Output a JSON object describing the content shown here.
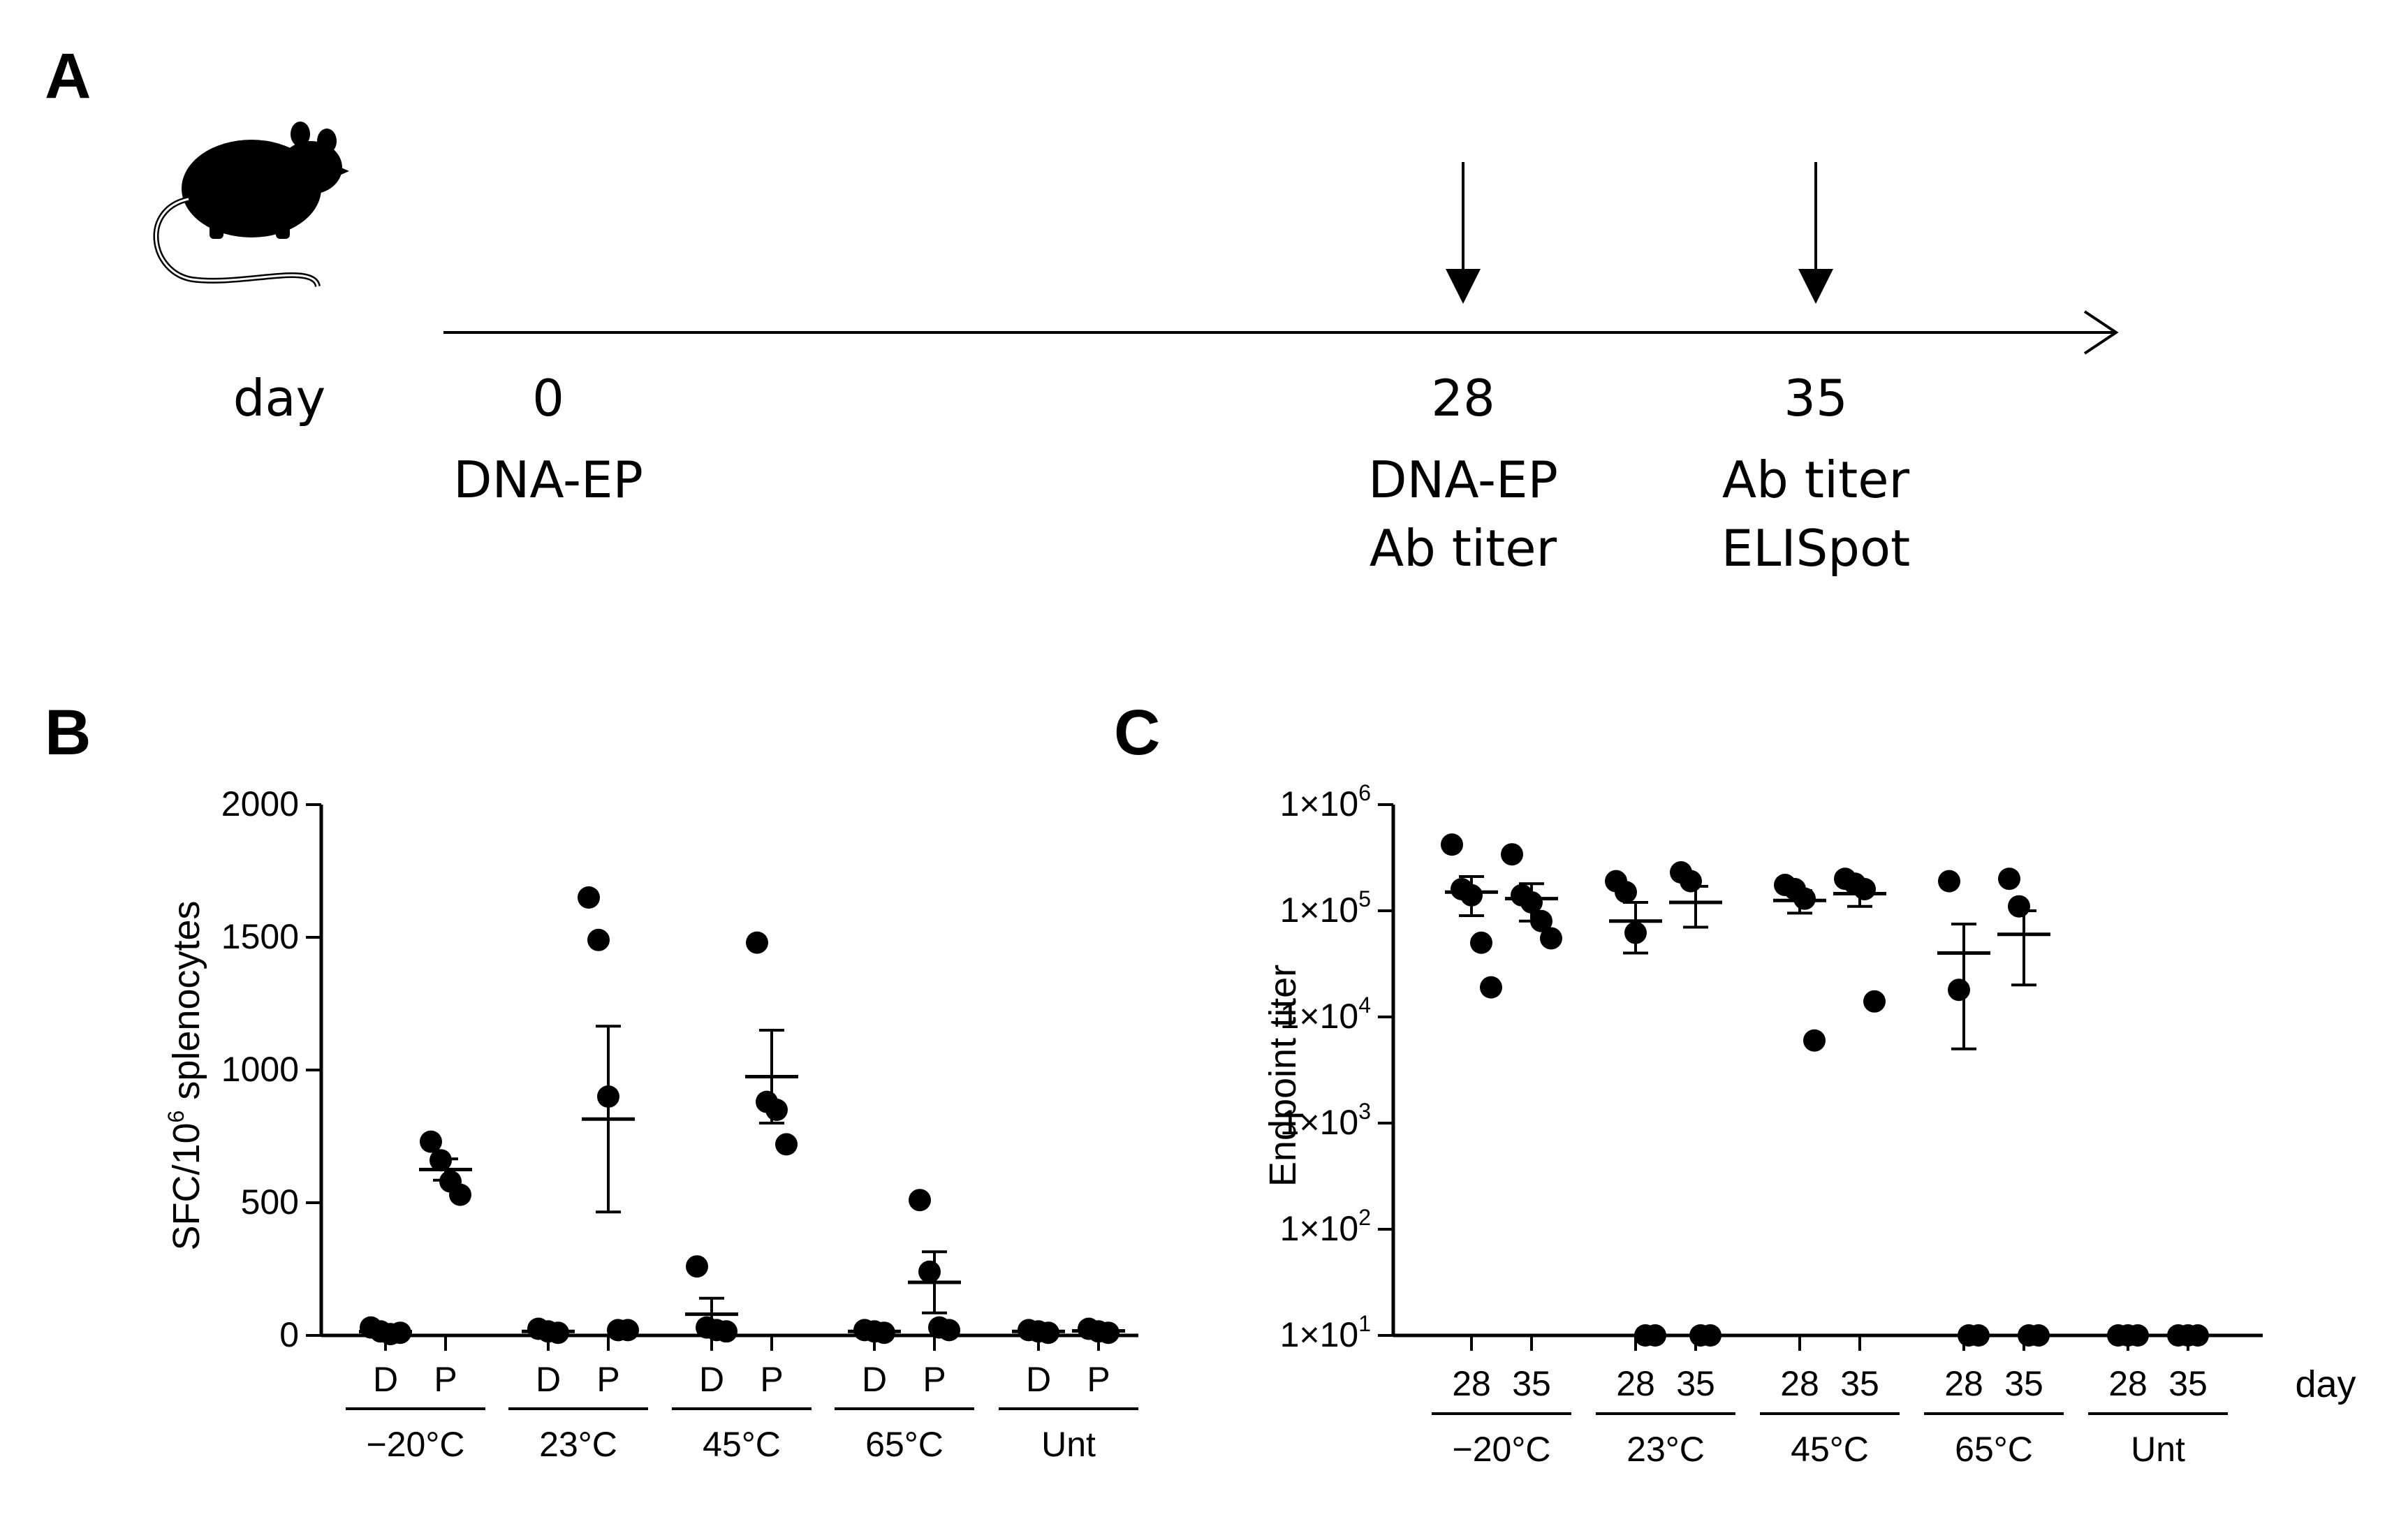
{
  "panels": {
    "a": "A",
    "b": "B",
    "c": "C"
  },
  "timeline": {
    "day_label": "day",
    "days": [
      {
        "day": "0",
        "lines": [
          "DNA-EP"
        ],
        "arrow": false
      },
      {
        "day": "28",
        "lines": [
          "DNA-EP",
          "Ab titer"
        ],
        "arrow": true
      },
      {
        "day": "35",
        "lines": [
          "Ab titer",
          "ELISpot"
        ],
        "arrow": true
      }
    ]
  },
  "chart_data": [
    {
      "id": "B",
      "type": "scatter",
      "ylabel_main": "SFC/10",
      "ylabel_sup": "6",
      "ylabel_rest": " splenocytes",
      "ylim": [
        0,
        2000
      ],
      "yticks": [
        "0",
        "500",
        "1000",
        "1500",
        "2000"
      ],
      "groups": [
        {
          "label": "−20°C",
          "series": [
            {
              "name": "D",
              "points": [
                30,
                15,
                5,
                10
              ],
              "mean": 14,
              "sem": 5
            },
            {
              "name": "P",
              "points": [
                730,
                660,
                580,
                530
              ],
              "mean": 625,
              "sem": 40
            }
          ]
        },
        {
          "label": "23°C",
          "series": [
            {
              "name": "D",
              "points": [
                25,
                15,
                10
              ],
              "mean": 15,
              "sem": 5
            },
            {
              "name": "P",
              "points": [
                1650,
                1490,
                900,
                20,
                20
              ],
              "mean": 815,
              "sem": 350
            }
          ]
        },
        {
          "label": "45°C",
          "series": [
            {
              "name": "D",
              "points": [
                260,
                30,
                20,
                15
              ],
              "mean": 80,
              "sem": 60
            },
            {
              "name": "P",
              "points": [
                1480,
                880,
                850,
                720
              ],
              "mean": 975,
              "sem": 175
            }
          ]
        },
        {
          "label": "65°C",
          "series": [
            {
              "name": "D",
              "points": [
                20,
                15,
                10
              ],
              "mean": 15,
              "sem": 5
            },
            {
              "name": "P",
              "points": [
                510,
                240,
                30,
                20
              ],
              "mean": 200,
              "sem": 115
            }
          ]
        },
        {
          "label": "Unt",
          "series": [
            {
              "name": "D",
              "points": [
                20,
                15,
                10
              ],
              "mean": 15,
              "sem": 5
            },
            {
              "name": "P",
              "points": [
                25,
                15,
                10
              ],
              "mean": 17,
              "sem": 5
            }
          ]
        }
      ]
    },
    {
      "id": "C",
      "type": "scatter",
      "ylabel": "Endpoint titer",
      "yscale": "log",
      "ylim": [
        10,
        1000000
      ],
      "ytick_base": "1×10",
      "yticks": [
        "1",
        "2",
        "3",
        "4",
        "5",
        "6"
      ],
      "xunit": "day",
      "groups": [
        {
          "label": "−20°C",
          "series": [
            {
              "name": "28",
              "points": [
                420000,
                160000,
                140000,
                50000,
                19000
              ],
              "mean": 150000,
              "sem": 60000
            },
            {
              "name": "35",
              "points": [
                340000,
                140000,
                120000,
                80000,
                55000
              ],
              "mean": 130000,
              "sem": 50000
            }
          ]
        },
        {
          "label": "23°C",
          "series": [
            {
              "name": "28",
              "points": [
                190000,
                150000,
                62000,
                10,
                10
              ],
              "mean": 80000,
              "sem": 40000
            },
            {
              "name": "35",
              "points": [
                230000,
                190000,
                10,
                10
              ],
              "mean": 120000,
              "sem": 50000
            }
          ]
        },
        {
          "label": "45°C",
          "series": [
            {
              "name": "28",
              "points": [
                175000,
                160000,
                130000,
                6000
              ],
              "mean": 125000,
              "sem": 30000
            },
            {
              "name": "35",
              "points": [
                200000,
                180000,
                160000,
                14000
              ],
              "mean": 145000,
              "sem": 35000
            }
          ]
        },
        {
          "label": "65°C",
          "series": [
            {
              "name": "28",
              "points": [
                190000,
                18000,
                10,
                10
              ],
              "mean": 40000,
              "sem": 35000
            },
            {
              "name": "35",
              "points": [
                200000,
                110000,
                10,
                10
              ],
              "mean": 60000,
              "sem": 40000
            }
          ]
        },
        {
          "label": "Unt",
          "series": [
            {
              "name": "28",
              "points": [
                10,
                10,
                10
              ],
              "mean": 10,
              "sem": 0
            },
            {
              "name": "35",
              "points": [
                10,
                10,
                10
              ],
              "mean": 10,
              "sem": 0
            }
          ]
        }
      ]
    }
  ]
}
